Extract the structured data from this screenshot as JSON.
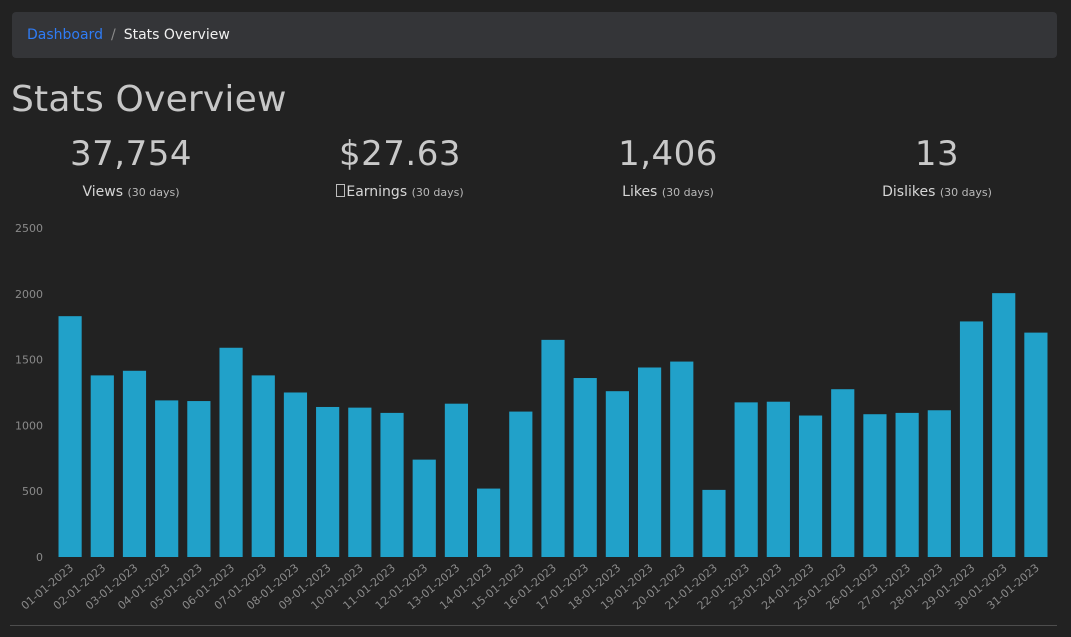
{
  "breadcrumb": {
    "link": "Dashboard",
    "separator": "/",
    "current": "Stats Overview"
  },
  "page_title": "Stats Overview",
  "stats": [
    {
      "value": "37,754",
      "label": "Views",
      "period": "(30 days)"
    },
    {
      "value": "$27.63",
      "label": "Earnings",
      "period": "(30 days)",
      "icon": "glyph-icon"
    },
    {
      "value": "1,406",
      "label": "Likes",
      "period": "(30 days)"
    },
    {
      "value": "13",
      "label": "Dislikes",
      "period": "(30 days)"
    }
  ],
  "colors": {
    "background": "#222222",
    "breadcrumb_bg": "#343538",
    "link": "#2f7cf6",
    "bar": "#21a1c9"
  },
  "chart_data": {
    "type": "bar",
    "categories": [
      "01-01-2023",
      "02-01-2023",
      "03-01-2023",
      "04-01-2023",
      "05-01-2023",
      "06-01-2023",
      "07-01-2023",
      "08-01-2023",
      "09-01-2023",
      "10-01-2023",
      "11-01-2023",
      "12-01-2023",
      "13-01-2023",
      "14-01-2023",
      "15-01-2023",
      "16-01-2023",
      "17-01-2023",
      "18-01-2023",
      "19-01-2023",
      "20-01-2023",
      "21-01-2023",
      "22-01-2023",
      "23-01-2023",
      "24-01-2023",
      "25-01-2023",
      "26-01-2023",
      "27-01-2023",
      "28-01-2023",
      "29-01-2023",
      "30-01-2023",
      "31-01-2023"
    ],
    "values": [
      1830,
      1380,
      1415,
      1190,
      1185,
      1590,
      1380,
      1250,
      1140,
      1135,
      1095,
      740,
      1165,
      520,
      1105,
      1650,
      1360,
      1260,
      1440,
      1485,
      510,
      1175,
      1180,
      1075,
      1275,
      1085,
      1095,
      1115,
      1790,
      2005,
      1705
    ],
    "title": "",
    "xlabel": "",
    "ylabel": "",
    "ylim": [
      0,
      2500
    ],
    "yticks": [
      0,
      500,
      1000,
      1500,
      2000,
      2500
    ],
    "grid": false,
    "legend": "none"
  }
}
